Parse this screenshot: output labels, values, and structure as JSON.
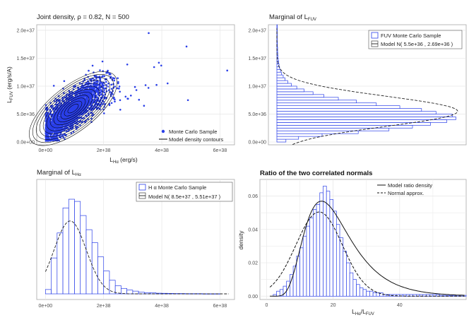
{
  "chart_data": [
    {
      "id": "joint",
      "type": "scatter",
      "title": "Joint density,  ρ = 0.82, N = 500",
      "xlabel": "L",
      "xlabel_sub": "Hα",
      "xlabel_unit": " (erg/s)",
      "ylabel": "L",
      "ylabel_sub": "FUV",
      "ylabel_unit": " (erg/s/A)",
      "xticks": [
        "0e+00",
        "2e+38",
        "4e+38",
        "6e+38"
      ],
      "xtick_values": [
        0,
        2e+38,
        4e+38,
        6e+38
      ],
      "yticks": [
        "0.0e+00",
        "5.0e+36",
        "1.0e+37",
        "1.5e+37",
        "2.0e+37"
      ],
      "ytick_values": [
        0,
        5e+36,
        1e+37,
        1.5e+37,
        2e+37
      ],
      "xlim": [
        -3e+37,
        6.5e+38
      ],
      "ylim": [
        -5e+35,
        2.1e+37
      ],
      "point_color": "#2a3fe8",
      "contour_color": "#000000",
      "outliers": [
        {
          "x": 6.25e+38,
          "y": 1.28e+37
        },
        {
          "x": 4.85e+38,
          "y": 1.71e+37
        },
        {
          "x": 3.55e+38,
          "y": 1.95e+37
        },
        {
          "x": 4.9e+38,
          "y": 7.5e+36
        },
        {
          "x": 4.2e+38,
          "y": 1.05e+37
        },
        {
          "x": 3.9e+38,
          "y": 1.42e+37
        }
      ],
      "legend": [
        {
          "label": "Monte Carlo Sample",
          "marker": "point"
        },
        {
          "label": "Model density contours",
          "marker": "line"
        }
      ]
    },
    {
      "id": "marg_fuv",
      "type": "bar",
      "orientation": "horizontal",
      "title": "Marginal of L",
      "title_sub": "FUV",
      "yticks": [
        "0.0e+00",
        "5.0e+36",
        "1.0e+37",
        "1.5e+37",
        "2.0e+37"
      ],
      "ytick_values": [
        0,
        5e+36,
        1e+37,
        1.5e+37,
        2e+37
      ],
      "ylim": [
        -5e+35,
        2.1e+37
      ],
      "bin_width": 5e+35,
      "bin_start": 0,
      "counts": [
        0.05,
        0.12,
        0.25,
        0.45,
        0.62,
        0.75,
        0.85,
        0.94,
        0.99,
        0.97,
        0.88,
        0.8,
        0.68,
        0.55,
        0.44,
        0.34,
        0.26,
        0.2,
        0.15,
        0.11,
        0.08,
        0.06,
        0.045,
        0.035,
        0.025,
        0.02,
        0.015,
        0.012,
        0.01,
        0.008,
        0.006,
        0.005,
        0.004,
        0.004,
        0.003,
        0.003,
        0.002,
        0.002,
        0.002,
        0.001,
        0.001,
        0.001
      ],
      "model_mean": 5.5e+36,
      "model_sd": 2.69e+36,
      "bar_color": "#2a3fe8",
      "legend": [
        {
          "label": "FUV Monte Carlo Sample",
          "marker": "box"
        },
        {
          "label": "Model N( 5.5e+36 , 2.69e+36 )",
          "marker": "box-line"
        }
      ]
    },
    {
      "id": "marg_ha",
      "type": "bar",
      "title": "Marginal of L",
      "title_sub": "Hα",
      "xticks": [
        "0e+00",
        "2e+38",
        "4e+38",
        "6e+38"
      ],
      "xtick_values": [
        0,
        2e+38,
        4e+38,
        6e+38
      ],
      "xlim": [
        -3e+37,
        6.5e+38
      ],
      "bin_width": 2e+37,
      "bin_start": 0,
      "counts": [
        0.04,
        0.33,
        0.56,
        0.79,
        0.87,
        0.85,
        0.72,
        0.59,
        0.47,
        0.34,
        0.21,
        0.125,
        0.075,
        0.05,
        0.035,
        0.025,
        0.015,
        0.01,
        0.01,
        0.006,
        0.005,
        0.004,
        0.003,
        0.003,
        0.002,
        0.002,
        0.002,
        0.001,
        0.001,
        0.001
      ],
      "model_mean": 8.5e+37,
      "model_sd": 5.51e+37,
      "model_peak": 0.67,
      "bar_color": "#2a3fe8",
      "legend": [
        {
          "label": "H α  Monte Carlo Sample",
          "marker": "box"
        },
        {
          "label": "Model N( 8.5e+37 , 5.51e+37 )",
          "marker": "box-line"
        }
      ]
    },
    {
      "id": "ratio",
      "type": "bar",
      "title": "Ratio of the two correlated normals",
      "xlabel": "L",
      "xlabel_sub": "Hα",
      "xlabel_mid": "/L",
      "xlabel_sub2": "FUV",
      "ylabel": "density",
      "xticks": [
        "0",
        "20",
        "40"
      ],
      "xtick_values": [
        0,
        20,
        40
      ],
      "yticks": [
        "0.00",
        "0.02",
        "0.04",
        "0.06"
      ],
      "ytick_values": [
        0,
        0.02,
        0.04,
        0.06
      ],
      "xlim": [
        -2,
        60
      ],
      "ylim": [
        -0.002,
        0.07
      ],
      "bin_width": 1,
      "bin_start": 2,
      "counts": [
        0.001,
        0.003,
        0.004,
        0.006,
        0.009,
        0.013,
        0.018,
        0.024,
        0.029,
        0.036,
        0.042,
        0.047,
        0.052,
        0.055,
        0.062,
        0.066,
        0.063,
        0.058,
        0.051,
        0.043,
        0.035,
        0.027,
        0.02,
        0.014,
        0.01,
        0.007,
        0.005,
        0.004,
        0.003,
        0.003,
        0.002,
        0.002,
        0.002,
        0.001,
        0.001,
        0.001,
        0.001,
        0.001,
        0.001,
        0.001,
        0.001,
        0.001,
        0.001,
        0.001,
        0.001,
        0.001,
        0.001,
        0.001,
        0.001,
        0.001,
        0.0005,
        0.0005,
        0.0005,
        0.0005,
        0.0005,
        0.0005,
        0.0005,
        0.0005
      ],
      "model_ratio": {
        "mode": 16.5,
        "peak": 0.057
      },
      "normal_approx": {
        "mean": 15.8,
        "sd": 7.0,
        "peak": 0.0505
      },
      "bar_color": "#2a3fe8",
      "legend": [
        {
          "label": "Model ratio density",
          "marker": "line"
        },
        {
          "label": "Normal approx.",
          "marker": "dashed"
        }
      ]
    }
  ]
}
